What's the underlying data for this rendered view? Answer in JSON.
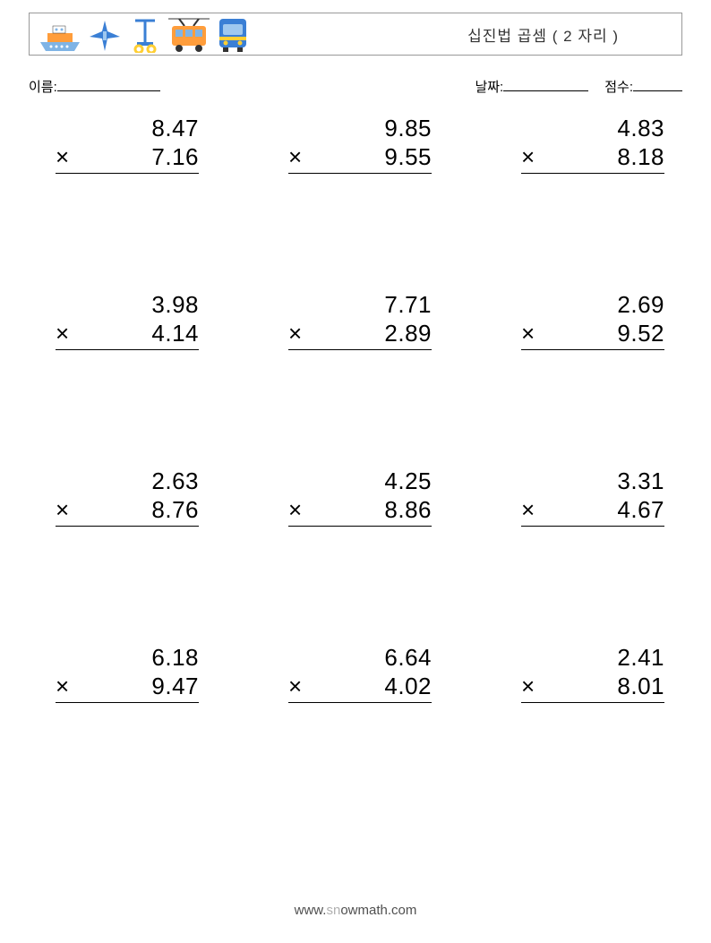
{
  "header": {
    "title": "십진법 곱셈 ( 2 자리 )",
    "icons": [
      "ship-icon",
      "plane-icon",
      "scooter-icon",
      "tram-icon",
      "bus-icon"
    ],
    "icon_colors": {
      "ship_hull": "#7fb4e6",
      "ship_body": "#ff9d3b",
      "ship_cabin": "#ffffff",
      "plane": "#3a7fd5",
      "scooter": "#3a7fd5",
      "scooter_yellow": "#ffcf33",
      "tram": "#ff9d3b",
      "tram_window": "#7fb4e6",
      "bus": "#3a7fd5",
      "bus_yellow": "#ffcf33"
    }
  },
  "labels": {
    "name": "이름:",
    "date": "날짜:",
    "score": "점수:"
  },
  "style": {
    "page_bg": "#ffffff",
    "border_color": "#999999",
    "text_color": "#000000",
    "number_fontsize": 26,
    "title_fontsize": 17,
    "label_fontsize": 15,
    "footer_color": "#4f4f4f",
    "footer_light": "#b0b0b0",
    "name_underline_width": 115,
    "date_underline_width": 95,
    "score_underline_width": 55
  },
  "problems": [
    [
      {
        "a": "8.47",
        "b": "7.16"
      },
      {
        "a": "9.85",
        "b": "9.55"
      },
      {
        "a": "4.83",
        "b": "8.18"
      }
    ],
    [
      {
        "a": "3.98",
        "b": "4.14"
      },
      {
        "a": "7.71",
        "b": "2.89"
      },
      {
        "a": "2.69",
        "b": "9.52"
      }
    ],
    [
      {
        "a": "2.63",
        "b": "8.76"
      },
      {
        "a": "4.25",
        "b": "8.86"
      },
      {
        "a": "3.31",
        "b": "4.67"
      }
    ],
    [
      {
        "a": "6.18",
        "b": "9.47"
      },
      {
        "a": "6.64",
        "b": "4.02"
      },
      {
        "a": "2.41",
        "b": "8.01"
      }
    ]
  ],
  "operator": "×",
  "footer": {
    "pre": "www.",
    "mid": "sn",
    "post": "owmath.com"
  }
}
